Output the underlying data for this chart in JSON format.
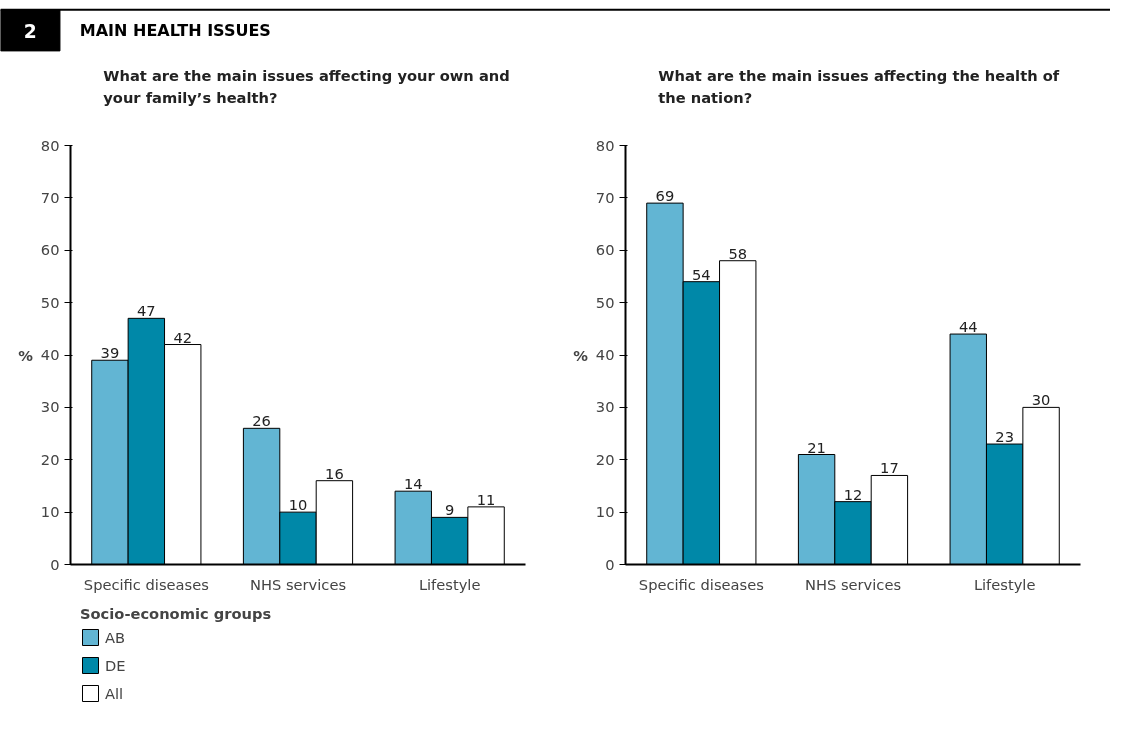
{
  "chart_data": [
    {
      "type": "bar",
      "title": "What are the main issues affecting your own and your family’s health?",
      "annotations": [
        "2",
        "MAIN HEALTH ISSUES"
      ],
      "ylabel": "%",
      "categories": [
        "Specific diseases",
        "NHS services",
        "Lifestyle"
      ],
      "series": [
        {
          "name": "AB",
          "color": "#62b5d3",
          "values": [
            39,
            26,
            14
          ]
        },
        {
          "name": "DE",
          "color": "#0088a8",
          "values": [
            47,
            10,
            9
          ]
        },
        {
          "name": "All",
          "color": "#ffffff",
          "values": [
            42,
            16,
            11
          ]
        }
      ],
      "ylim": [
        0,
        80
      ],
      "yticks": [
        0,
        10,
        20,
        30,
        40,
        50,
        60,
        70,
        80
      ],
      "data_labels": true,
      "legend": "bottom",
      "legend_title": "Socio-economic groups",
      "grid": false
    },
    {
      "type": "bar",
      "title": "What are the main issues affecting the health of the nation?",
      "ylabel": "%",
      "categories": [
        "Specific diseases",
        "NHS services",
        "Lifestyle"
      ],
      "series": [
        {
          "color": "#62b5d3",
          "values": [
            69,
            21,
            44
          ]
        },
        {
          "color": "#0088a8",
          "values": [
            54,
            12,
            23
          ]
        },
        {
          "color": "#ffffff",
          "values": [
            58,
            17,
            30
          ]
        }
      ],
      "ylim": [
        0,
        80
      ],
      "yticks": [
        0,
        10,
        20,
        30,
        40,
        50,
        60,
        70,
        80
      ],
      "data_labels": true,
      "grid": false
    }
  ]
}
